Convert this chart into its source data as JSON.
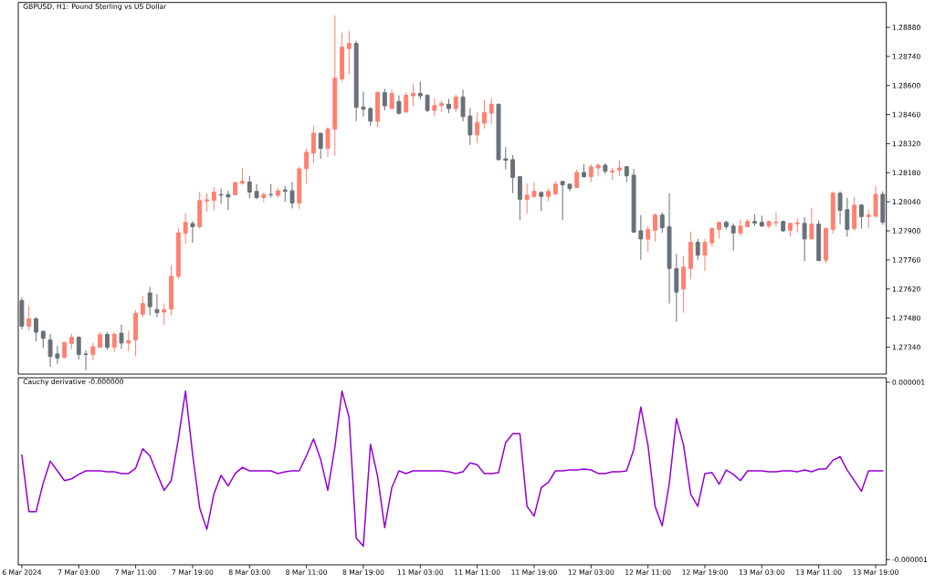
{
  "chart_data": [
    {
      "type": "candlestick",
      "title": "GBPUSD, H1: Pound Sterling vs US Dollar",
      "categories": [
        null,
        null,
        null,
        null,
        null,
        null,
        null,
        null,
        null,
        null,
        null,
        null,
        null,
        null,
        null,
        null,
        null,
        null,
        null,
        null,
        null,
        null,
        null,
        null,
        null,
        null,
        null,
        null,
        null,
        null,
        null,
        null,
        null,
        null,
        null,
        null,
        null,
        null,
        null,
        null,
        null,
        null,
        null,
        null,
        null,
        null,
        null,
        null,
        null,
        null,
        null,
        null,
        null,
        null,
        null,
        null,
        null,
        null,
        null,
        null,
        null,
        null,
        null,
        null,
        null,
        null,
        null,
        null,
        null,
        null,
        null,
        null,
        null,
        null,
        null,
        null,
        null,
        null,
        null,
        null,
        null,
        null,
        null,
        null,
        null,
        null,
        null,
        null,
        null,
        null,
        null,
        null,
        null,
        null,
        null,
        null,
        null,
        null,
        null,
        null,
        null,
        null,
        null,
        null,
        null,
        null,
        null,
        null,
        null,
        null,
        null,
        null,
        null,
        null,
        null,
        null,
        null,
        null,
        null,
        null,
        null,
        null
      ],
      "ohlc": [
        [
          1.27565,
          1.27579,
          1.27426,
          1.27441
        ],
        [
          1.27441,
          1.27538,
          1.27419,
          1.27477
        ],
        [
          1.27477,
          1.27484,
          1.27368,
          1.27412
        ],
        [
          1.27416,
          1.27419,
          1.27334,
          1.27382
        ],
        [
          1.27375,
          1.27404,
          1.27244,
          1.27295
        ],
        [
          1.27307,
          1.27346,
          1.27258,
          1.27288
        ],
        [
          1.2729,
          1.27363,
          1.27288,
          1.27363
        ],
        [
          1.27358,
          1.27404,
          1.27331,
          1.27387
        ],
        [
          1.27387,
          1.27393,
          1.2728,
          1.27305
        ],
        [
          1.27307,
          1.27324,
          1.27229,
          1.27305
        ],
        [
          1.27305,
          1.2736,
          1.27277,
          1.27342
        ],
        [
          1.27339,
          1.27412,
          1.27339,
          1.274
        ],
        [
          1.27401,
          1.27412,
          1.27327,
          1.27339
        ],
        [
          1.27339,
          1.27412,
          1.27317,
          1.27401
        ],
        [
          1.27407,
          1.27448,
          1.27331,
          1.2736
        ],
        [
          1.2736,
          1.27419,
          1.2732,
          1.27372
        ],
        [
          1.27375,
          1.27518,
          1.27295,
          1.27503
        ],
        [
          1.27499,
          1.27587,
          1.27484,
          1.2755
        ],
        [
          1.27601,
          1.2763,
          1.27492,
          1.27535
        ],
        [
          1.27521,
          1.27594,
          1.27484,
          1.27506
        ],
        [
          1.27509,
          1.2755,
          1.27448,
          1.27521
        ],
        [
          1.27524,
          1.27735,
          1.27492,
          1.27681
        ],
        [
          1.27681,
          1.27915,
          1.27667,
          1.27891
        ],
        [
          1.27888,
          1.27985,
          1.27839,
          1.27941
        ],
        [
          1.27935,
          1.27947,
          1.27842,
          1.2792
        ],
        [
          1.2792,
          1.28087,
          1.27912,
          1.28046
        ],
        [
          1.28043,
          1.28081,
          1.27993,
          1.2805
        ],
        [
          1.28047,
          1.28111,
          1.27999,
          1.28087
        ],
        [
          1.28075,
          1.28104,
          1.28031,
          1.28072
        ],
        [
          1.28075,
          1.28093,
          1.27999,
          1.28063
        ],
        [
          1.28074,
          1.28136,
          1.28074,
          1.28133
        ],
        [
          1.2813,
          1.28203,
          1.28122,
          1.28138
        ],
        [
          1.28136,
          1.28165,
          1.28056,
          1.28087
        ],
        [
          1.2809,
          1.28125,
          1.28052,
          1.2806
        ],
        [
          1.2806,
          1.28085,
          1.28039,
          1.28075
        ],
        [
          1.28075,
          1.28125,
          1.2806,
          1.28074
        ],
        [
          1.28071,
          1.28107,
          1.2806,
          1.28093
        ],
        [
          1.28097,
          1.28116,
          1.28039,
          1.2809
        ],
        [
          1.28093,
          1.28136,
          1.28008,
          1.28034
        ],
        [
          1.28034,
          1.28209,
          1.28005,
          1.28199
        ],
        [
          1.282,
          1.28297,
          1.28126,
          1.28279
        ],
        [
          1.28275,
          1.28406,
          1.28225,
          1.2837
        ],
        [
          1.2837,
          1.2837,
          1.28246,
          1.28297
        ],
        [
          1.28297,
          1.28399,
          1.28257,
          1.28391
        ],
        [
          1.28389,
          1.28938,
          1.28262,
          1.28636
        ],
        [
          1.28632,
          1.28855,
          1.28619,
          1.28785
        ],
        [
          1.28778,
          1.28863,
          1.28655,
          1.28803
        ],
        [
          1.28803,
          1.28816,
          1.28428,
          1.28495
        ],
        [
          1.28496,
          1.28571,
          1.2845,
          1.28486
        ],
        [
          1.28489,
          1.28495,
          1.28406,
          1.28428
        ],
        [
          1.28428,
          1.28575,
          1.28399,
          1.28566
        ],
        [
          1.28566,
          1.28584,
          1.2848,
          1.28502
        ],
        [
          1.28489,
          1.2858,
          1.28489,
          1.28562
        ],
        [
          1.28523,
          1.28553,
          1.28461,
          1.28466
        ],
        [
          1.28472,
          1.28566,
          1.28472,
          1.28553
        ],
        [
          1.2855,
          1.28606,
          1.28502,
          1.28562
        ],
        [
          1.28562,
          1.28619,
          1.28533,
          1.2855
        ],
        [
          1.28553,
          1.28558,
          1.28472,
          1.2848
        ],
        [
          1.2848,
          1.2854,
          1.2845,
          1.28504
        ],
        [
          1.28504,
          1.28527,
          1.28472,
          1.28513
        ],
        [
          1.2851,
          1.28536,
          1.28467,
          1.28489
        ],
        [
          1.28489,
          1.28558,
          1.28472,
          1.28545
        ],
        [
          1.28545,
          1.2858,
          1.28428,
          1.2845
        ],
        [
          1.28453,
          1.28492,
          1.28314,
          1.28362
        ],
        [
          1.28362,
          1.2847,
          1.28323,
          1.28422
        ],
        [
          1.28419,
          1.28531,
          1.28393,
          1.2847
        ],
        [
          1.28467,
          1.2854,
          1.28415,
          1.2851
        ],
        [
          1.2851,
          1.2851,
          1.28238,
          1.28243
        ],
        [
          1.28247,
          1.28304,
          1.28196,
          1.2824
        ],
        [
          1.28243,
          1.28265,
          1.28082,
          1.28157
        ],
        [
          1.28161,
          1.28165,
          1.27951,
          1.28052
        ],
        [
          1.28052,
          1.28129,
          1.27982,
          1.28072
        ],
        [
          1.28066,
          1.28133,
          1.28058,
          1.2809
        ],
        [
          1.28085,
          1.2809,
          1.27995,
          1.28066
        ],
        [
          1.28066,
          1.28104,
          1.28043,
          1.2809
        ],
        [
          1.28078,
          1.28138,
          1.28075,
          1.28125
        ],
        [
          1.28138,
          1.28138,
          1.27951,
          1.28122
        ],
        [
          1.28125,
          1.28125,
          1.2809,
          1.28104
        ],
        [
          1.28109,
          1.28195,
          1.28109,
          1.28181
        ],
        [
          1.28181,
          1.28221,
          1.2816,
          1.2816
        ],
        [
          1.28161,
          1.28221,
          1.28135,
          1.28208
        ],
        [
          1.28203,
          1.28225,
          1.28165,
          1.28216
        ],
        [
          1.28216,
          1.28225,
          1.28174,
          1.28187
        ],
        [
          1.28183,
          1.28203,
          1.28144,
          1.28189
        ],
        [
          1.28192,
          1.2824,
          1.28165,
          1.28203
        ],
        [
          1.28209,
          1.28212,
          1.28135,
          1.28165
        ],
        [
          1.28168,
          1.28199,
          1.27891,
          1.27894
        ],
        [
          1.279,
          1.27976,
          1.27761,
          1.27861
        ],
        [
          1.2786,
          1.27923,
          1.27798,
          1.27906
        ],
        [
          1.27903,
          1.27985,
          1.27848,
          1.27976
        ],
        [
          1.27976,
          1.27989,
          1.27891,
          1.27915
        ],
        [
          1.2792,
          1.28081,
          1.2755,
          1.27719
        ],
        [
          1.27718,
          1.27789,
          1.27463,
          1.27605
        ],
        [
          1.2762,
          1.27779,
          1.27506,
          1.27725
        ],
        [
          1.27719,
          1.27897,
          1.27667,
          1.27845
        ],
        [
          1.27845,
          1.27862,
          1.27761,
          1.27783
        ],
        [
          1.27783,
          1.27862,
          1.27706,
          1.27845
        ],
        [
          1.27842,
          1.27915,
          1.27824,
          1.27912
        ],
        [
          1.27907,
          1.27944,
          1.27864,
          1.27941
        ],
        [
          1.27941,
          1.2795,
          1.27907,
          1.2792
        ],
        [
          1.27923,
          1.27935,
          1.27805,
          1.2789
        ],
        [
          1.2789,
          1.27955,
          1.27874,
          1.27923
        ],
        [
          1.2792,
          1.27958,
          1.2792,
          1.27945
        ],
        [
          1.27945,
          1.2798,
          1.27923,
          1.27938
        ],
        [
          1.27941,
          1.27973,
          1.2792,
          1.27923
        ],
        [
          1.27923,
          1.2795,
          1.27912,
          1.27945
        ],
        [
          1.27939,
          1.27989,
          1.2792,
          1.27942
        ],
        [
          1.27945,
          1.2795,
          1.27894,
          1.279
        ],
        [
          1.27903,
          1.27941,
          1.27872,
          1.27936
        ],
        [
          1.27934,
          1.2796,
          1.27891,
          1.27939
        ],
        [
          1.27936,
          1.27967,
          1.27754,
          1.27861
        ],
        [
          1.27861,
          1.28011,
          1.27861,
          1.27932
        ],
        [
          1.27932,
          1.2795,
          1.27754,
          1.27757
        ],
        [
          1.27759,
          1.27915,
          1.27745,
          1.27912
        ],
        [
          1.27907,
          1.2809,
          1.27885,
          1.28081
        ],
        [
          1.28081,
          1.2809,
          1.27932,
          1.27999
        ],
        [
          1.28002,
          1.2806,
          1.27872,
          1.27907
        ],
        [
          1.27912,
          1.28063,
          1.27899,
          1.28024
        ],
        [
          1.28024,
          1.2803,
          1.27912,
          1.27969
        ],
        [
          1.27969,
          1.28002,
          1.27912,
          1.27976
        ],
        [
          1.27971,
          1.28117,
          1.27963,
          1.28076
        ],
        [
          1.28076,
          1.2809,
          1.27929,
          1.27942
        ]
      ],
      "colors": [
        "#697078",
        "#ff8070",
        "#697078",
        "#697078",
        "#697078",
        "#697078",
        "#ff8070",
        "#ff8070",
        "#697078",
        "#697078",
        "#ff8070",
        "#ff8070",
        "#697078",
        "#ff8070",
        "#697078",
        "#ff8070",
        "#ff8070",
        "#ff8070",
        "#697078",
        "#697078",
        "#ff8070",
        "#ff8070",
        "#ff8070",
        "#ff8070",
        "#697078",
        "#ff8070",
        "#ff8070",
        "#ff8070",
        "#697078",
        "#697078",
        "#ff8070",
        "#ff8070",
        "#697078",
        "#697078",
        "#ff8070",
        "#697078",
        "#ff8070",
        "#697078",
        "#697078",
        "#ff8070",
        "#ff8070",
        "#ff8070",
        "#697078",
        "#ff8070",
        "#ff8070",
        "#ff8070",
        "#ff8070",
        "#697078",
        "#697078",
        "#697078",
        "#ff8070",
        "#697078",
        "#ff8070",
        "#697078",
        "#ff8070",
        "#ff8070",
        "#697078",
        "#697078",
        "#ff8070",
        "#ff8070",
        "#697078",
        "#ff8070",
        "#697078",
        "#697078",
        "#ff8070",
        "#ff8070",
        "#ff8070",
        "#697078",
        "#697078",
        "#697078",
        "#697078",
        "#ff8070",
        "#ff8070",
        "#697078",
        "#ff8070",
        "#ff8070",
        "#697078",
        "#697078",
        "#ff8070",
        "#697078",
        "#ff8070",
        "#ff8070",
        "#697078",
        "#ff8070",
        "#ff8070",
        "#697078",
        "#697078",
        "#697078",
        "#ff8070",
        "#ff8070",
        "#697078",
        "#697078",
        "#697078",
        "#ff8070",
        "#ff8070",
        "#697078",
        "#ff8070",
        "#ff8070",
        "#ff8070",
        "#697078",
        "#697078",
        "#ff8070",
        "#ff8070",
        "#697078",
        "#697078",
        "#ff8070",
        "#ff8070",
        "#697078",
        "#ff8070",
        "#ff8070",
        "#697078",
        "#ff8070",
        "#697078",
        "#ff8070",
        "#ff8070",
        "#697078",
        "#697078",
        "#ff8070",
        "#697078",
        "#ff8070",
        "#ff8070",
        "#697078"
      ],
      "ylim": [
        1.2721,
        1.29
      ],
      "yticks": [
        {
          "value": 1.2734,
          "label": "1.27340"
        },
        {
          "value": 1.2748,
          "label": "1.27480"
        },
        {
          "value": 1.2762,
          "label": "1.27620"
        },
        {
          "value": 1.2776,
          "label": "1.27760"
        },
        {
          "value": 1.279,
          "label": "1.27900"
        },
        {
          "value": 1.2804,
          "label": "1.28040"
        },
        {
          "value": 1.2818,
          "label": "1.28180"
        },
        {
          "value": 1.2832,
          "label": "1.28320"
        },
        {
          "value": 1.2846,
          "label": "1.28460"
        },
        {
          "value": 1.286,
          "label": "1.28600"
        },
        {
          "value": 1.2874,
          "label": "1.28740"
        },
        {
          "value": 1.2888,
          "label": "1.28880"
        }
      ]
    },
    {
      "type": "line",
      "title": "Cauchy derivative -0.000000",
      "categories": [
        "6 Mar 2024",
        null,
        null,
        null,
        null,
        null,
        null,
        null,
        "7 Mar 03:00",
        null,
        null,
        null,
        null,
        null,
        null,
        null,
        "7 Mar 11:00",
        null,
        null,
        null,
        null,
        null,
        null,
        null,
        "7 Mar 19:00",
        null,
        null,
        null,
        null,
        null,
        null,
        null,
        "8 Mar 03:00",
        null,
        null,
        null,
        null,
        null,
        null,
        null,
        "8 Mar 11:00",
        null,
        null,
        null,
        null,
        null,
        null,
        null,
        "8 Mar 19:00",
        null,
        null,
        null,
        null,
        null,
        null,
        null,
        "11 Mar 03:00",
        null,
        null,
        null,
        null,
        null,
        null,
        null,
        "11 Mar 11:00",
        null,
        null,
        null,
        null,
        null,
        null,
        null,
        "11 Mar 19:00",
        null,
        null,
        null,
        null,
        null,
        null,
        null,
        "12 Mar 03:00",
        null,
        null,
        null,
        null,
        null,
        null,
        null,
        "12 Mar 11:00",
        null,
        null,
        null,
        null,
        null,
        null,
        null,
        "12 Mar 19:00",
        null,
        null,
        null,
        null,
        null,
        null,
        null,
        "13 Mar 03:00",
        null,
        null,
        null,
        null,
        null,
        null,
        null,
        "13 Mar 11:00",
        null,
        null,
        null,
        null,
        null,
        null,
        null,
        "13 Mar 19:00",
        null
      ],
      "series": [
        {
          "color": "#9400d3",
          "values": [
            1.8e-07,
            -4.6e-07,
            -4.6e-07,
            -1.4e-07,
            1.1e-07,
            0,
            -1.1e-07,
            -9e-08,
            -4e-08,
            0,
            0,
            0,
            -1e-08,
            -1e-08,
            -3e-08,
            -3e-08,
            3e-08,
            2.5e-07,
            1.7e-07,
            -3e-08,
            -2.2e-07,
            -1.1e-07,
            3.6e-07,
            9e-07,
            1.9e-07,
            -4.2e-07,
            -6.6e-07,
            -2.6e-07,
            -5e-08,
            -1.7e-07,
            -3e-08,
            4e-08,
            0,
            0,
            0,
            0,
            -3e-08,
            -1e-08,
            0,
            0,
            1.7e-07,
            3.6e-07,
            1.3e-07,
            -2.2e-07,
            2.7e-07,
            9e-07,
            6e-07,
            -7.6e-07,
            -8.5e-07,
            3e-07,
            -6e-08,
            -6.4e-07,
            -1.9e-07,
            0,
            -3e-08,
            0,
            0,
            0,
            0,
            0,
            -1e-08,
            -3e-08,
            -1e-08,
            9e-08,
            7e-08,
            -3e-08,
            -3e-08,
            -2e-08,
            3.2e-07,
            4.2e-07,
            4.2e-07,
            -4e-07,
            -5.1e-07,
            -1.9e-07,
            -1.3e-07,
            0,
            0,
            1e-08,
            1e-08,
            2e-08,
            1e-08,
            -3e-08,
            -3e-08,
            -1e-08,
            -1e-08,
            0,
            2.4e-07,
            7.2e-07,
            2.9e-07,
            -4e-07,
            -6.2e-07,
            -1.4e-07,
            5.9e-07,
            2.9e-07,
            -2.6e-07,
            -4e-07,
            -3e-08,
            -2e-08,
            -1.5e-07,
            1e-08,
            -4e-08,
            -1.1e-07,
            0,
            0,
            0,
            -1e-08,
            -1e-08,
            0,
            0,
            -1e-08,
            1e-08,
            -1e-08,
            2e-08,
            2e-08,
            1.2e-07,
            1.6e-07,
            1e-08,
            -1.1e-07,
            -2.3e-07,
            0,
            0,
            0
          ]
        }
      ],
      "ylim": [
        -1.06e-06,
        1.05e-06
      ],
      "yticks": [
        {
          "value": -1e-06,
          "label": "-0.000001"
        },
        {
          "value": 1e-06,
          "label": "0.000001"
        }
      ]
    }
  ]
}
